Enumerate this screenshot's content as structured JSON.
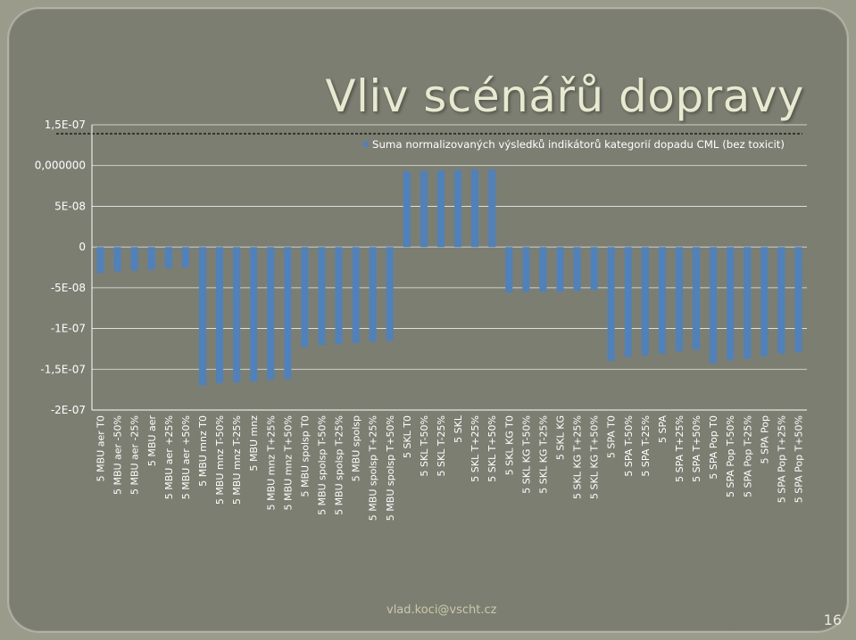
{
  "slide": {
    "title": "Vliv scénářů dopravy",
    "footer": "vlad.koci@vscht.cz",
    "page_number": "16"
  },
  "colors": {
    "background": "#7d7e72",
    "bar": "#4f81bd",
    "title": "#e8ead0",
    "gridline": "#ffffff"
  },
  "chart_data": {
    "type": "bar",
    "title": "",
    "xlabel": "",
    "ylabel": "",
    "ylim": [
      -2e-07,
      1.5e-07
    ],
    "ytick_values": [
      1.5e-07,
      1e-07,
      5e-08,
      0,
      -5e-08,
      -1e-07,
      -1.5e-07,
      -2e-07
    ],
    "ytick_labels": [
      "1,5E-07",
      "0,000000",
      "5E-08",
      "0",
      "-5E-08",
      "-1E-07",
      "-1,5E-07",
      "-2E-07"
    ],
    "grid": true,
    "legend_position": "top-right",
    "categories": [
      "5 MBU aer T0",
      "5 MBU aer -50%",
      "5 MBU aer -25%",
      "5 MBU aer",
      "5 MBU aer +25%",
      "5 MBU aer +50%",
      "5 MBU mnz T0",
      "5 MBU mnz T-50%",
      "5 MBU mnz T-25%",
      "5 MBU mnz",
      "5 MBU mnz T+25%",
      "5 MBU mnz T+50%",
      "5 MBU spolsp T0",
      "5 MBU spolsp T-50%",
      "5 MBU spolsp T-25%",
      "5 MBU spolsp",
      "5 MBU spolsp T+25%",
      "5 MBU spolsp T+50%",
      "5 SKL T0",
      "5 SKL T-50%",
      "5 SKL T-25%",
      "5 SKL",
      "5 SKL T+25%",
      "5 SKL T+50%",
      "5 SKL KG T0",
      "5 SKL KG T-50%",
      "5 SKL KG T-25%",
      "5 SKL KG",
      "5 SKL KG T+25%",
      "5 SKL KG T+50%",
      "5 SPA T0",
      "5 SPA T-50%",
      "5 SPA T-25%",
      "5 SPA",
      "5 SPA T+25%",
      "5 SPA T+50%",
      "5 SPA Pop T0",
      "5 SPA Pop T-50%",
      "5 SPA Pop T-25%",
      "5 SPA Pop",
      "5 SPA Pop T+25%",
      "5 SPA Pop T+50%"
    ],
    "series": [
      {
        "name": "Suma normalizovaných výsledků indikátorů kategorií dopadu CML (bez toxicit)",
        "values": [
          -3.2e-08,
          -3e-08,
          -2.9e-08,
          -2.8e-08,
          -2.6e-08,
          -2.5e-08,
          -1.7e-07,
          -1.67e-07,
          -1.66e-07,
          -1.65e-07,
          -1.63e-07,
          -1.62e-07,
          -1.23e-07,
          -1.2e-07,
          -1.19e-07,
          -1.18e-07,
          -1.16e-07,
          -1.15e-07,
          9.3e-08,
          9.35e-08,
          9.4e-08,
          9.45e-08,
          9.5e-08,
          9.5e-08,
          -5.6e-08,
          -5.5e-08,
          -5.5e-08,
          -5.5e-08,
          -5.4e-08,
          -5.3e-08,
          -1.4e-07,
          -1.35e-07,
          -1.33e-07,
          -1.31e-07,
          -1.28e-07,
          -1.26e-07,
          -1.43e-07,
          -1.39e-07,
          -1.37e-07,
          -1.34e-07,
          -1.31e-07,
          -1.29e-07
        ]
      }
    ]
  }
}
